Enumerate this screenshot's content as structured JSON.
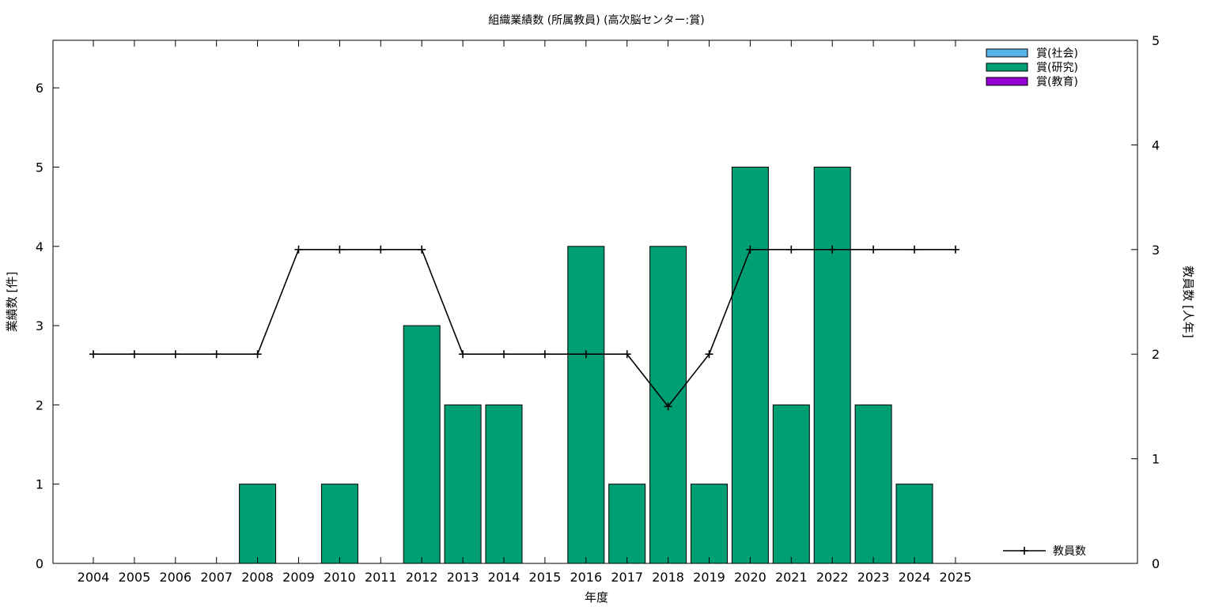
{
  "chart_data": {
    "type": "bar",
    "title": "組織業績数 (所属教員) (高次脳センター:賞)",
    "xlabel": "年度",
    "ylabel": "業績数 [件]",
    "y2label": "教員数 [人年]",
    "categories": [
      "2004",
      "2005",
      "2006",
      "2007",
      "2008",
      "2009",
      "2010",
      "2011",
      "2012",
      "2013",
      "2014",
      "2015",
      "2016",
      "2017",
      "2018",
      "2019",
      "2020",
      "2021",
      "2022",
      "2023",
      "2024",
      "2025"
    ],
    "ylim": [
      0,
      6.6
    ],
    "y2lim": [
      0,
      5
    ],
    "yticks": [
      "0",
      "1",
      "2",
      "3",
      "4",
      "5",
      "6"
    ],
    "y2ticks": [
      "0",
      "1",
      "2",
      "3",
      "4",
      "5"
    ],
    "series": [
      {
        "name": "賞(社会)",
        "color": "#56b4e9",
        "values": [
          0,
          0,
          0,
          0,
          0,
          0,
          0,
          0,
          0,
          0,
          0,
          0,
          0,
          0,
          0,
          0,
          0,
          0,
          0,
          0,
          0,
          0
        ]
      },
      {
        "name": "賞(研究)",
        "color": "#009e73",
        "values": [
          0,
          0,
          0,
          0,
          1,
          0,
          1,
          0,
          3,
          2,
          2,
          0,
          4,
          1,
          4,
          1,
          5,
          2,
          5,
          2,
          1,
          0
        ]
      },
      {
        "name": "賞(教育)",
        "color": "#9400d3",
        "values": [
          0,
          0,
          0,
          0,
          0,
          0,
          0,
          0,
          0,
          0,
          0,
          0,
          0,
          0,
          0,
          0,
          0,
          0,
          0,
          0,
          0,
          0
        ]
      }
    ],
    "line_series": {
      "name": "教員数",
      "color": "#000000",
      "axis": "y2",
      "values": [
        2,
        2,
        2,
        2,
        2,
        3,
        3,
        3,
        3,
        2,
        2,
        2,
        2,
        2,
        1.5,
        2,
        3,
        3,
        3,
        3,
        3,
        3
      ]
    },
    "legend_position": "top-right",
    "grid": false
  }
}
